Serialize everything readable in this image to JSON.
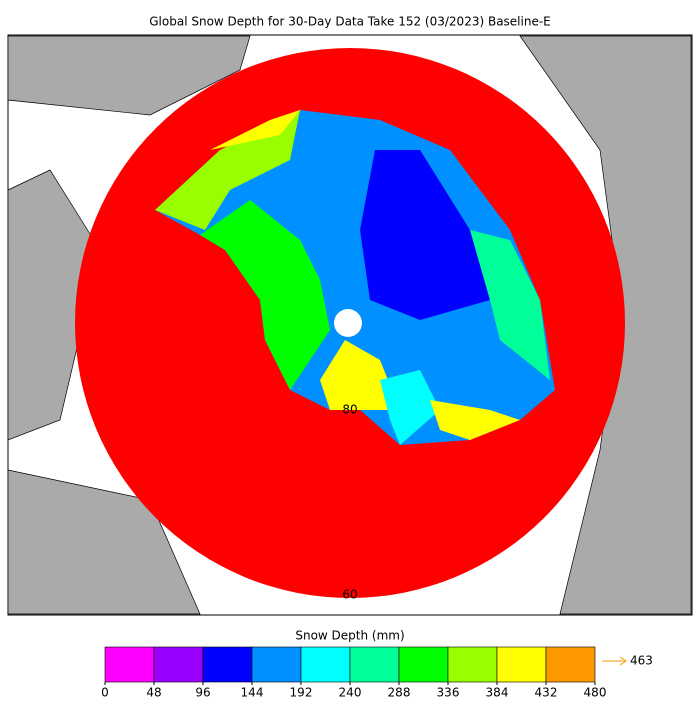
{
  "title": "Global Snow Depth for 30-Day Data Take 152 (03/2023) Baseline-E",
  "map": {
    "labels": [
      "80",
      "60"
    ]
  },
  "colorbar": {
    "label": "Snow Depth (mm)",
    "ticks": [
      0,
      48,
      96,
      144,
      192,
      240,
      288,
      336,
      384,
      432,
      480
    ],
    "colors": [
      "#ff00ff",
      "#9a00ff",
      "#0000ff",
      "#0090ff",
      "#00ffff",
      "#00ff99",
      "#00ff00",
      "#99ff00",
      "#ffff00",
      "#ff9900"
    ],
    "max_label": "463"
  }
}
